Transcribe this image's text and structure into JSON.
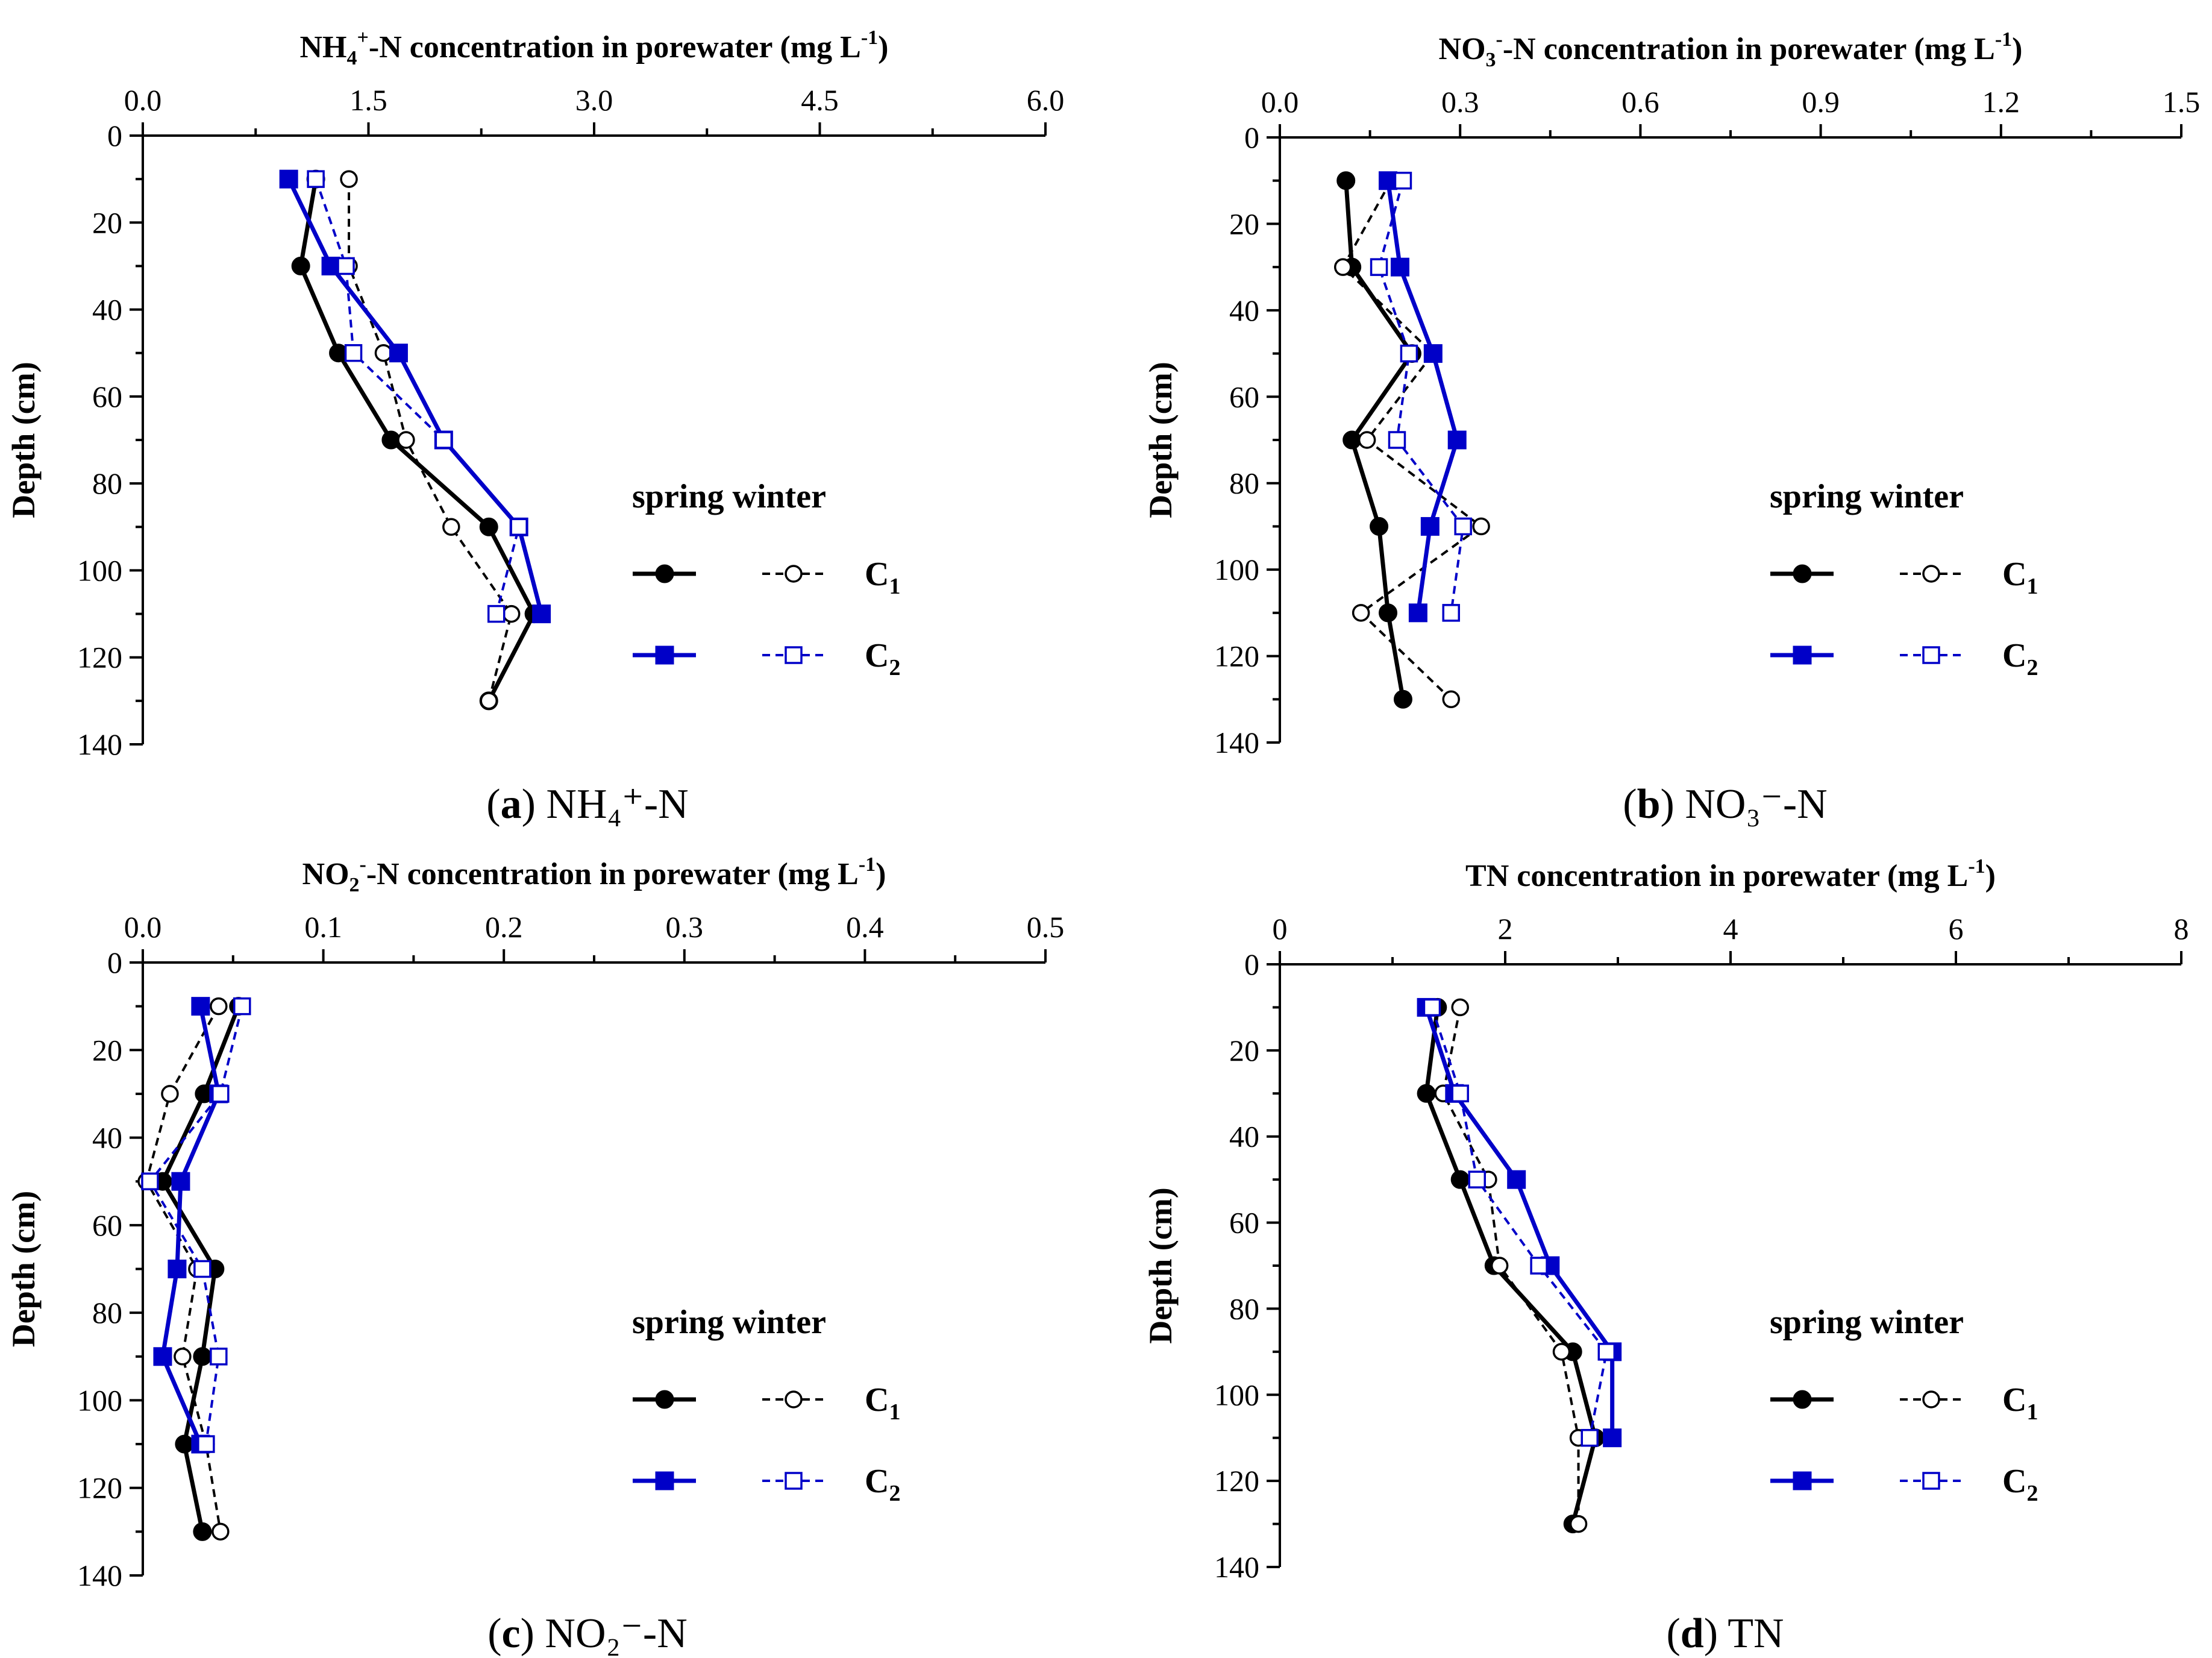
{
  "figure": {
    "panels": [
      {
        "id": "a",
        "caption_letter": "(a)",
        "caption_text": "NH₄⁺-N"
      },
      {
        "id": "b",
        "caption_letter": "(b)",
        "caption_text": "NO₃⁻-N"
      },
      {
        "id": "c",
        "caption_letter": "(c)",
        "caption_text": "NO₂⁻-N"
      },
      {
        "id": "d",
        "caption_letter": "(d)",
        "caption_text": "TN"
      }
    ]
  },
  "legend": {
    "header": "spring winter",
    "entries": [
      {
        "label": "C",
        "subscript": "1"
      },
      {
        "label": "C",
        "subscript": "2"
      }
    ]
  },
  "colors": {
    "c1": "#000000",
    "c2": "#0000c8",
    "axis": "#000000"
  },
  "chart_data": [
    {
      "type": "line",
      "panel": "a",
      "title": "NH₄⁺-N concentration in porewater (mg L⁻¹)",
      "title_parts": {
        "pre": "NH",
        "sub": "4",
        "sup": "+",
        "post": "-N concentration in porewater (mg L",
        "unit_sup": "-1",
        "end": ")"
      },
      "xlabel": "NH4+-N concentration in porewater (mg L-1)",
      "ylabel": "Depth (cm)",
      "xlim": [
        0,
        6
      ],
      "xticks": [
        0,
        1.5,
        3,
        4.5,
        6
      ],
      "xtick_labels": [
        "0.0",
        "1.5",
        "3.0",
        "4.5",
        "6.0"
      ],
      "ylim": [
        0,
        140
      ],
      "yticks": [
        0,
        20,
        40,
        60,
        80,
        100,
        120,
        140
      ],
      "ytick_labels": [
        "0",
        "20",
        "40",
        "60",
        "80",
        "100",
        "120",
        "140"
      ],
      "series": [
        {
          "name": "C1 spring",
          "site": "C1",
          "season": "spring",
          "depth": [
            10,
            30,
            50,
            70,
            90,
            110,
            130
          ],
          "values": [
            1.15,
            1.05,
            1.3,
            1.65,
            2.3,
            2.6,
            2.3
          ]
        },
        {
          "name": "C1 winter",
          "site": "C1",
          "season": "winter",
          "depth": [
            10,
            30,
            50,
            70,
            90,
            110,
            130
          ],
          "values": [
            1.37,
            1.37,
            1.6,
            1.75,
            2.05,
            2.45,
            2.3
          ]
        },
        {
          "name": "C2 spring",
          "site": "C2",
          "season": "spring",
          "depth": [
            10,
            30,
            50,
            70,
            90,
            110
          ],
          "values": [
            0.97,
            1.25,
            1.7,
            2.0,
            2.5,
            2.65
          ]
        },
        {
          "name": "C2 winter",
          "site": "C2",
          "season": "winter",
          "depth": [
            10,
            30,
            50,
            70,
            90,
            110
          ],
          "values": [
            1.15,
            1.35,
            1.4,
            2.0,
            2.5,
            2.35
          ]
        }
      ]
    },
    {
      "type": "line",
      "panel": "b",
      "title": "NO₃⁻-N concentration in porewater (mg L⁻¹)",
      "title_parts": {
        "pre": "NO",
        "sub": "3",
        "sup": "-",
        "post": "-N concentration in porewater (mg L",
        "unit_sup": "-1",
        "end": ")"
      },
      "xlabel": "NO3--N concentration in porewater (mg L-1)",
      "ylabel": "Depth (cm)",
      "xlim": [
        0,
        1.5
      ],
      "xticks": [
        0,
        0.3,
        0.6,
        0.9,
        1.2,
        1.5
      ],
      "xtick_labels": [
        "0.0",
        "0.3",
        "0.6",
        "0.9",
        "1.2",
        "1.5"
      ],
      "ylim": [
        0,
        140
      ],
      "yticks": [
        0,
        20,
        40,
        60,
        80,
        100,
        120,
        140
      ],
      "ytick_labels": [
        "0",
        "20",
        "40",
        "60",
        "80",
        "100",
        "120",
        "140"
      ],
      "series": [
        {
          "name": "C1 spring",
          "site": "C1",
          "season": "spring",
          "depth": [
            10,
            30,
            50,
            70,
            90,
            110,
            130
          ],
          "values": [
            0.11,
            0.12,
            0.22,
            0.12,
            0.165,
            0.18,
            0.205
          ]
        },
        {
          "name": "C1 winter",
          "site": "C1",
          "season": "winter",
          "depth": [
            10,
            30,
            50,
            70,
            90,
            110,
            130
          ],
          "values": [
            0.185,
            0.105,
            0.255,
            0.145,
            0.335,
            0.135,
            0.285
          ]
        },
        {
          "name": "C2 spring",
          "site": "C2",
          "season": "spring",
          "depth": [
            10,
            30,
            50,
            70,
            90,
            110
          ],
          "values": [
            0.18,
            0.2,
            0.255,
            0.295,
            0.25,
            0.23
          ]
        },
        {
          "name": "C2 winter",
          "site": "C2",
          "season": "winter",
          "depth": [
            10,
            30,
            50,
            70,
            90,
            110
          ],
          "values": [
            0.205,
            0.165,
            0.215,
            0.195,
            0.305,
            0.285
          ]
        }
      ]
    },
    {
      "type": "line",
      "panel": "c",
      "title": "NO₂⁻-N concentration in porewater (mg L⁻¹)",
      "title_parts": {
        "pre": "NO",
        "sub": "2",
        "sup": "-",
        "post": "-N concentration in porewater (mg L",
        "unit_sup": "-1",
        "end": ")"
      },
      "xlabel": "NO2--N concentration in porewater (mg L-1)",
      "ylabel": "Depth (cm)",
      "xlim": [
        0,
        0.5
      ],
      "xticks": [
        0,
        0.1,
        0.2,
        0.3,
        0.4,
        0.5
      ],
      "xtick_labels": [
        "0.0",
        "0.1",
        "0.2",
        "0.3",
        "0.4",
        "0.5"
      ],
      "ylim": [
        0,
        140
      ],
      "yticks": [
        0,
        20,
        40,
        60,
        80,
        100,
        120,
        140
      ],
      "ytick_labels": [
        "0",
        "20",
        "40",
        "60",
        "80",
        "100",
        "120",
        "140"
      ],
      "series": [
        {
          "name": "C1 spring",
          "site": "C1",
          "season": "spring",
          "depth": [
            10,
            30,
            50,
            70,
            90,
            110,
            130
          ],
          "values": [
            0.053,
            0.034,
            0.011,
            0.04,
            0.033,
            0.023,
            0.033
          ]
        },
        {
          "name": "C1 winter",
          "site": "C1",
          "season": "winter",
          "depth": [
            10,
            30,
            50,
            70,
            90,
            110,
            130
          ],
          "values": [
            0.042,
            0.015,
            0.002,
            0.03,
            0.022,
            0.035,
            0.043
          ]
        },
        {
          "name": "C2 spring",
          "site": "C2",
          "season": "spring",
          "depth": [
            10,
            30,
            50,
            70,
            90,
            110
          ],
          "values": [
            0.032,
            0.042,
            0.021,
            0.019,
            0.011,
            0.032
          ]
        },
        {
          "name": "C2 winter",
          "site": "C2",
          "season": "winter",
          "depth": [
            10,
            30,
            50,
            70,
            90,
            110
          ],
          "values": [
            0.055,
            0.043,
            0.004,
            0.033,
            0.042,
            0.035
          ]
        }
      ]
    },
    {
      "type": "line",
      "panel": "d",
      "title": "TN concentration in porewater (mg L⁻¹)",
      "title_parts": {
        "pre": "TN concentration in porewater (mg L",
        "sub": "",
        "sup": "",
        "post": "",
        "unit_sup": "-1",
        "end": ")"
      },
      "xlabel": "TN concentration in porewater (mg L-1)",
      "ylabel": "Depth (cm)",
      "xlim": [
        0,
        8
      ],
      "xticks": [
        0,
        2,
        4,
        6,
        8
      ],
      "xtick_labels": [
        "0",
        "2",
        "4",
        "6",
        "8"
      ],
      "ylim": [
        0,
        140
      ],
      "yticks": [
        0,
        20,
        40,
        60,
        80,
        100,
        120,
        140
      ],
      "ytick_labels": [
        "0",
        "20",
        "40",
        "60",
        "80",
        "100",
        "120",
        "140"
      ],
      "series": [
        {
          "name": "C1 spring",
          "site": "C1",
          "season": "spring",
          "depth": [
            10,
            30,
            50,
            70,
            90,
            110,
            130
          ],
          "values": [
            1.4,
            1.3,
            1.6,
            1.9,
            2.6,
            2.8,
            2.6
          ]
        },
        {
          "name": "C1 winter",
          "site": "C1",
          "season": "winter",
          "depth": [
            10,
            30,
            50,
            70,
            90,
            110,
            130
          ],
          "values": [
            1.6,
            1.45,
            1.85,
            1.95,
            2.5,
            2.65,
            2.65
          ]
        },
        {
          "name": "C2 spring",
          "site": "C2",
          "season": "spring",
          "depth": [
            10,
            30,
            50,
            70,
            90,
            110
          ],
          "values": [
            1.3,
            1.55,
            2.1,
            2.4,
            2.95,
            2.95
          ]
        },
        {
          "name": "C2 winter",
          "site": "C2",
          "season": "winter",
          "depth": [
            10,
            30,
            50,
            70,
            90,
            110
          ],
          "values": [
            1.35,
            1.6,
            1.75,
            2.3,
            2.9,
            2.75
          ]
        }
      ]
    }
  ]
}
